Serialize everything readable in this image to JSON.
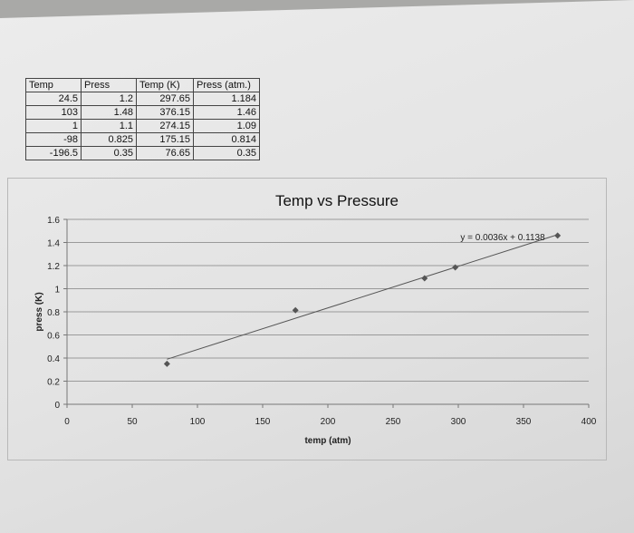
{
  "table": {
    "headers": [
      "Temp",
      "Press",
      "Temp (K)",
      "Press (atm.)"
    ],
    "rows": [
      [
        "24.5",
        "1.2",
        "297.65",
        "1.184"
      ],
      [
        "103",
        "1.48",
        "376.15",
        "1.46"
      ],
      [
        "1",
        "1.1",
        "274.15",
        "1.09"
      ],
      [
        "-98",
        "0.825",
        "175.15",
        "0.814"
      ],
      [
        "-196.5",
        "0.35",
        "76.65",
        "0.35"
      ]
    ]
  },
  "chart_data": {
    "type": "scatter",
    "title": "Temp vs Pressure",
    "xlabel": "temp (atm)",
    "ylabel": "press (K)",
    "xlim": [
      0,
      400
    ],
    "ylim": [
      0,
      1.6
    ],
    "x_ticks": [
      "0",
      "50",
      "100",
      "150",
      "200",
      "250",
      "300",
      "350",
      "400"
    ],
    "y_ticks": [
      "0",
      "0.2",
      "0.4",
      "0.6",
      "0.8",
      "1",
      "1.2",
      "1.4",
      "1.6"
    ],
    "grid": true,
    "series": [
      {
        "points": [
          [
            76.65,
            0.35
          ],
          [
            175.15,
            0.814
          ],
          [
            274.15,
            1.09
          ],
          [
            297.65,
            1.184
          ],
          [
            376.15,
            1.46
          ]
        ],
        "marker_color": "#555555"
      }
    ],
    "trendline": {
      "slope": 0.0036,
      "intercept": 0.1138,
      "label": "y = 0.0036x + 0.1138",
      "x_range": [
        76.65,
        376.15
      ]
    }
  }
}
